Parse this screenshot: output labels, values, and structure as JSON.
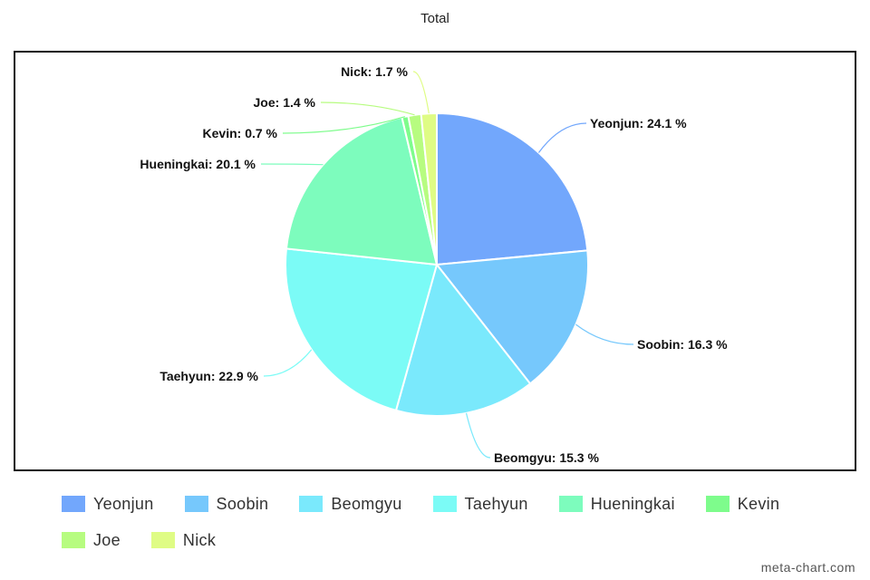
{
  "chart_data": {
    "type": "pie",
    "title": "Total",
    "categories": [
      "Yeonjun",
      "Soobin",
      "Beomgyu",
      "Taehyun",
      "Hueningkai",
      "Kevin",
      "Joe",
      "Nick"
    ],
    "values": [
      24.1,
      16.3,
      15.3,
      22.9,
      20.1,
      0.7,
      1.4,
      1.7
    ],
    "labels": [
      "Yeonjun: 24.1 %",
      "Soobin: 16.3 %",
      "Beomgyu: 15.3 %",
      "Taehyun: 22.9 %",
      "Hueningkai: 20.1 %",
      "Kevin: 0.7 %",
      "Joe: 1.4 %",
      "Nick: 1.7 %"
    ],
    "colors": [
      "#72a7fc",
      "#76c8fc",
      "#7ae9fc",
      "#7bfbf6",
      "#7dfcbd",
      "#7efc8c",
      "#b7fc80",
      "#dffc85"
    ],
    "legend_position": "bottom"
  },
  "watermark": "meta-chart.com"
}
